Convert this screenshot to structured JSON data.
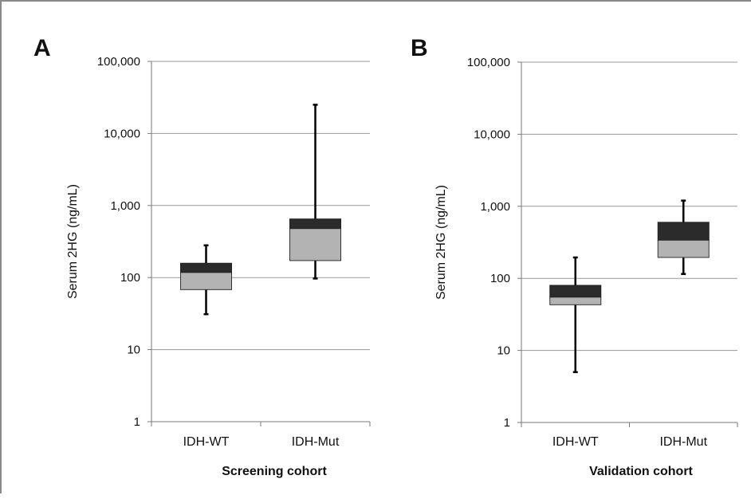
{
  "chart_data": [
    {
      "type": "box",
      "panel": "A",
      "xlabel": "Screening cohort",
      "ylabel": "Serum 2HG (ng/mL)",
      "yscale": "log",
      "ylim": [
        1,
        100000
      ],
      "yticks": [
        1,
        10,
        100,
        1000,
        10000,
        100000
      ],
      "ytick_labels": [
        "1",
        "10",
        "100",
        "1,000",
        "10,000",
        "100,000"
      ],
      "grid": true,
      "categories": [
        "IDH-WT",
        "IDH-Mut"
      ],
      "boxes": [
        {
          "category": "IDH-WT",
          "min": 31,
          "q1": 68,
          "median": 118,
          "q3": 158,
          "max": 280
        },
        {
          "category": "IDH-Mut",
          "min": 97,
          "q1": 172,
          "median": 480,
          "q3": 650,
          "max": 25000
        }
      ],
      "colors": {
        "lower_box": "#b3b3b3",
        "upper_box": "#2b2b2b",
        "whisker": "#000000",
        "grid": "#9a9a9a"
      }
    },
    {
      "type": "box",
      "panel": "B",
      "xlabel": "Validation cohort",
      "ylabel": "Serum 2HG (ng/mL)",
      "yscale": "log",
      "ylim": [
        1,
        100000
      ],
      "yticks": [
        1,
        10,
        100,
        1000,
        10000,
        100000
      ],
      "ytick_labels": [
        "1",
        "10",
        "100",
        "1,000",
        "10,000",
        "100,000"
      ],
      "grid": true,
      "categories": [
        "IDH-WT",
        "IDH-Mut"
      ],
      "boxes": [
        {
          "category": "IDH-WT",
          "min": 5,
          "q1": 43,
          "median": 55,
          "q3": 80,
          "max": 195
        },
        {
          "category": "IDH-Mut",
          "min": 115,
          "q1": 195,
          "median": 340,
          "q3": 600,
          "max": 1200
        }
      ],
      "colors": {
        "lower_box": "#b3b3b3",
        "upper_box": "#2b2b2b",
        "whisker": "#000000",
        "grid": "#9a9a9a"
      }
    }
  ]
}
